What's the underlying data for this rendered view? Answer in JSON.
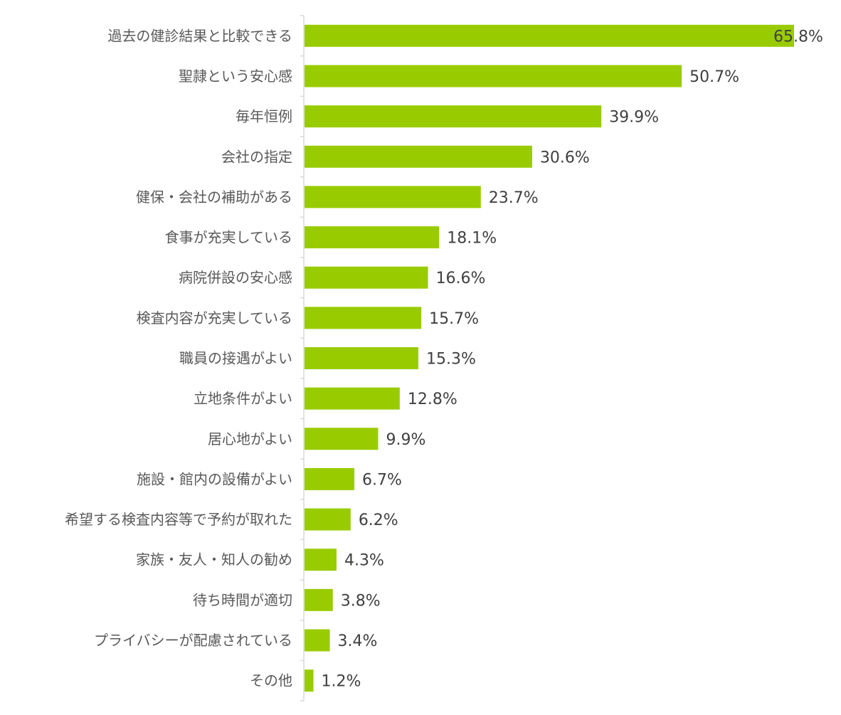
{
  "chart_data": {
    "type": "bar",
    "orientation": "horizontal",
    "title": "",
    "xlabel": "",
    "ylabel": "",
    "xlim": [
      0,
      66
    ],
    "grid": false,
    "bar_color": "#99CC00",
    "categories": [
      "過去の健診結果と比較できる",
      "聖隷という安心感",
      "毎年恒例",
      "会社の指定",
      "健保・会社の補助がある",
      "食事が充実している",
      "病院併設の安心感",
      "検査内容が充実している",
      "職員の接遇がよい",
      "立地条件がよい",
      "居心地がよい",
      "施設・館内の設備がよい",
      "希望する検査内容等で予約が取れた",
      "家族・友人・知人の勧め",
      "待ち時間が適切",
      "プライバシーが配慮されている",
      "その他"
    ],
    "values": [
      65.8,
      50.7,
      39.9,
      30.6,
      23.7,
      18.1,
      16.6,
      15.7,
      15.3,
      12.8,
      9.9,
      6.7,
      6.2,
      4.3,
      3.8,
      3.4,
      1.2
    ],
    "value_labels": [
      "65.8%",
      "50.7%",
      "39.9%",
      "30.6%",
      "23.7%",
      "18.1%",
      "16.6%",
      "15.7%",
      "15.3%",
      "12.8%",
      "9.9%",
      "6.7%",
      "6.2%",
      "4.3%",
      "3.8%",
      "3.4%",
      "1.2%"
    ]
  }
}
